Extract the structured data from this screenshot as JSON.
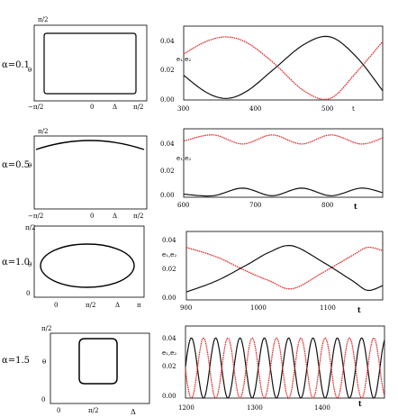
{
  "figure": {
    "rows": [
      {
        "alpha_label": "α=0.1",
        "phase": {
          "ylabel": "θ",
          "xlabel": "Δ",
          "xticks": [
            "−π/2",
            "0",
            "π/2"
          ],
          "yticks": [
            "π/2"
          ],
          "shape": "rounded-square"
        },
        "time": {
          "ylabel": "e₁,e₂",
          "xlabel": "t",
          "xticks": [
            "300",
            "400",
            "500"
          ],
          "yticks": [
            "0.04",
            "0.02",
            "0.00"
          ]
        }
      },
      {
        "alpha_label": "α=0.5",
        "phase": {
          "ylabel": "θ",
          "xlabel": "Δ",
          "xticks": [
            "−π/2",
            "0",
            "π/2"
          ],
          "yticks": [
            "π/2"
          ],
          "shape": "arc"
        },
        "time": {
          "ylabel": "e₁,e₂",
          "xlabel": "t",
          "xticks": [
            "600",
            "700",
            "800"
          ],
          "yticks": [
            "0.04",
            "0.02",
            "0.00"
          ]
        }
      },
      {
        "alpha_label": "α=1.0",
        "phase": {
          "ylabel": "θ",
          "xlabel": "Δ",
          "xticks": [
            "0",
            "π/2",
            "π"
          ],
          "yticks": [
            "π/2",
            "0"
          ],
          "shape": "ellipse"
        },
        "time": {
          "ylabel": "e₁,e₂",
          "xlabel": "t",
          "xticks": [
            "900",
            "1000",
            "1100"
          ],
          "yticks": [
            "0.04",
            "0.02",
            "0.00"
          ]
        }
      },
      {
        "alpha_label": "α=1.5",
        "phase": {
          "ylabel": "θ",
          "xlabel": "Δ",
          "xticks": [
            "0",
            "π/2"
          ],
          "yticks": [
            "π/2",
            "0"
          ],
          "shape": "rounded-square-small"
        },
        "time": {
          "ylabel": "e₁,e₂",
          "xlabel": "t",
          "xticks": [
            "1200",
            "1300",
            "1400"
          ],
          "yticks": [
            "0.04",
            "0.02",
            "0.00"
          ]
        }
      }
    ]
  },
  "chart_data": [
    {
      "type": "line",
      "panel": "α=0.1 time series",
      "xlabel": "t",
      "ylabel": "e₁,e₂",
      "xlim": [
        300,
        565
      ],
      "ylim": [
        0,
        0.048
      ],
      "series": [
        {
          "color": "#e02020",
          "x": [
            300,
            330,
            357,
            385,
            420,
            460,
            495,
            530,
            565
          ],
          "values": [
            0.03,
            0.038,
            0.041,
            0.037,
            0.024,
            0.006,
            0.001,
            0.018,
            0.038
          ]
        },
        {
          "color": "#111111",
          "x": [
            300,
            330,
            357,
            385,
            420,
            460,
            495,
            530,
            565
          ],
          "values": [
            0.016,
            0.005,
            0.001,
            0.006,
            0.02,
            0.036,
            0.041,
            0.028,
            0.006
          ]
        }
      ]
    },
    {
      "type": "line",
      "panel": "α=0.5 time series",
      "xlabel": "t",
      "ylabel": "e₁,e₂",
      "xlim": [
        600,
        870
      ],
      "ylim": [
        0,
        0.045
      ],
      "series": [
        {
          "color": "#e02020",
          "x": [
            600,
            640,
            680,
            720,
            760,
            800,
            840,
            870
          ],
          "values": [
            0.037,
            0.041,
            0.035,
            0.041,
            0.035,
            0.041,
            0.035,
            0.039
          ]
        },
        {
          "color": "#111111",
          "x": [
            600,
            640,
            680,
            720,
            760,
            800,
            840,
            870
          ],
          "values": [
            0.002,
            0.001,
            0.006,
            0.001,
            0.006,
            0.001,
            0.006,
            0.003
          ]
        }
      ]
    },
    {
      "type": "line",
      "panel": "α=1.0 time series",
      "xlabel": "t",
      "ylabel": "e₁,e₂",
      "xlim": [
        900,
        1160
      ],
      "ylim": [
        0,
        0.043
      ],
      "series": [
        {
          "color": "#e02020",
          "x": [
            900,
            940,
            980,
            1010,
            1040,
            1080,
            1120,
            1140,
            1160
          ],
          "values": [
            0.033,
            0.027,
            0.018,
            0.012,
            0.007,
            0.017,
            0.028,
            0.033,
            0.031
          ]
        },
        {
          "color": "#111111",
          "x": [
            900,
            940,
            980,
            1010,
            1040,
            1080,
            1120,
            1140,
            1160
          ],
          "values": [
            0.005,
            0.012,
            0.022,
            0.03,
            0.034,
            0.024,
            0.012,
            0.006,
            0.009
          ]
        }
      ]
    },
    {
      "type": "line",
      "panel": "α=1.5 time series",
      "xlabel": "t",
      "ylabel": "e₁,e₂",
      "xlim": [
        1200,
        1470
      ],
      "ylim": [
        0,
        0.048
      ],
      "series": [
        {
          "color": "#111111",
          "period": 33,
          "phase_t": 1208,
          "amplitude": 0.02,
          "mean": 0.02
        },
        {
          "color": "#e02020",
          "period": 33,
          "phase_t": 1224.5,
          "amplitude": 0.02,
          "mean": 0.02
        }
      ]
    }
  ]
}
